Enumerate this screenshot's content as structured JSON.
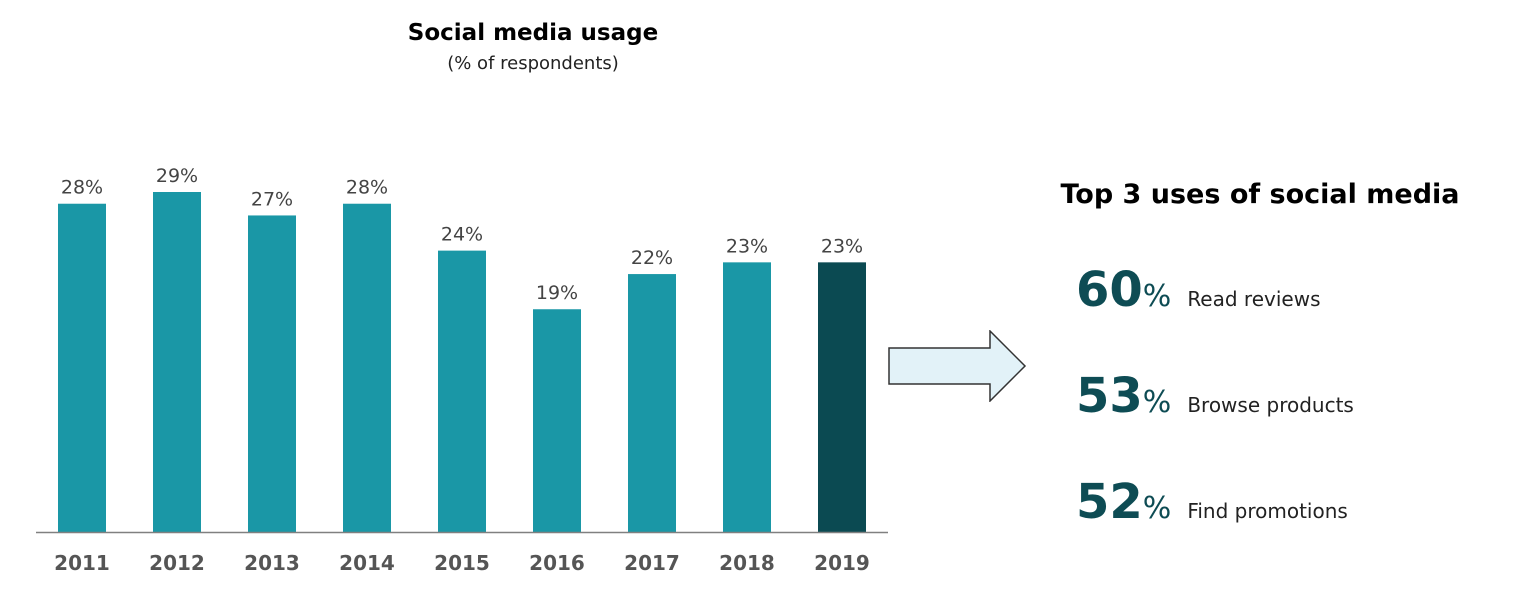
{
  "chart_data": {
    "type": "bar",
    "title": "Social media usage",
    "subtitle": "(% of respondents)",
    "categories": [
      "2011",
      "2012",
      "2013",
      "2014",
      "2015",
      "2016",
      "2017",
      "2018",
      "2019"
    ],
    "values": [
      28,
      29,
      27,
      28,
      24,
      19,
      22,
      23,
      23
    ],
    "data_labels": [
      "28%",
      "29%",
      "27%",
      "28%",
      "24%",
      "19%",
      "22%",
      "23%",
      "23%"
    ],
    "ylim": [
      0,
      30
    ],
    "grid": false,
    "highlight_category": "2019",
    "colors": {
      "bar": "#1a97a6",
      "highlight": "#0b4a52",
      "axis": "#808080",
      "label": "#444444",
      "tick": "#555555"
    }
  },
  "top_uses": {
    "title": "Top 3 uses of social media",
    "items": [
      {
        "value": "60",
        "pct": "%",
        "label": "Read reviews"
      },
      {
        "value": "53",
        "pct": "%",
        "label": "Browse products"
      },
      {
        "value": "52",
        "pct": "%",
        "label": "Find promotions"
      }
    ]
  },
  "arrow": {
    "icon": "right-arrow-icon",
    "fill": "#e2f2f8",
    "stroke": "#333333"
  }
}
